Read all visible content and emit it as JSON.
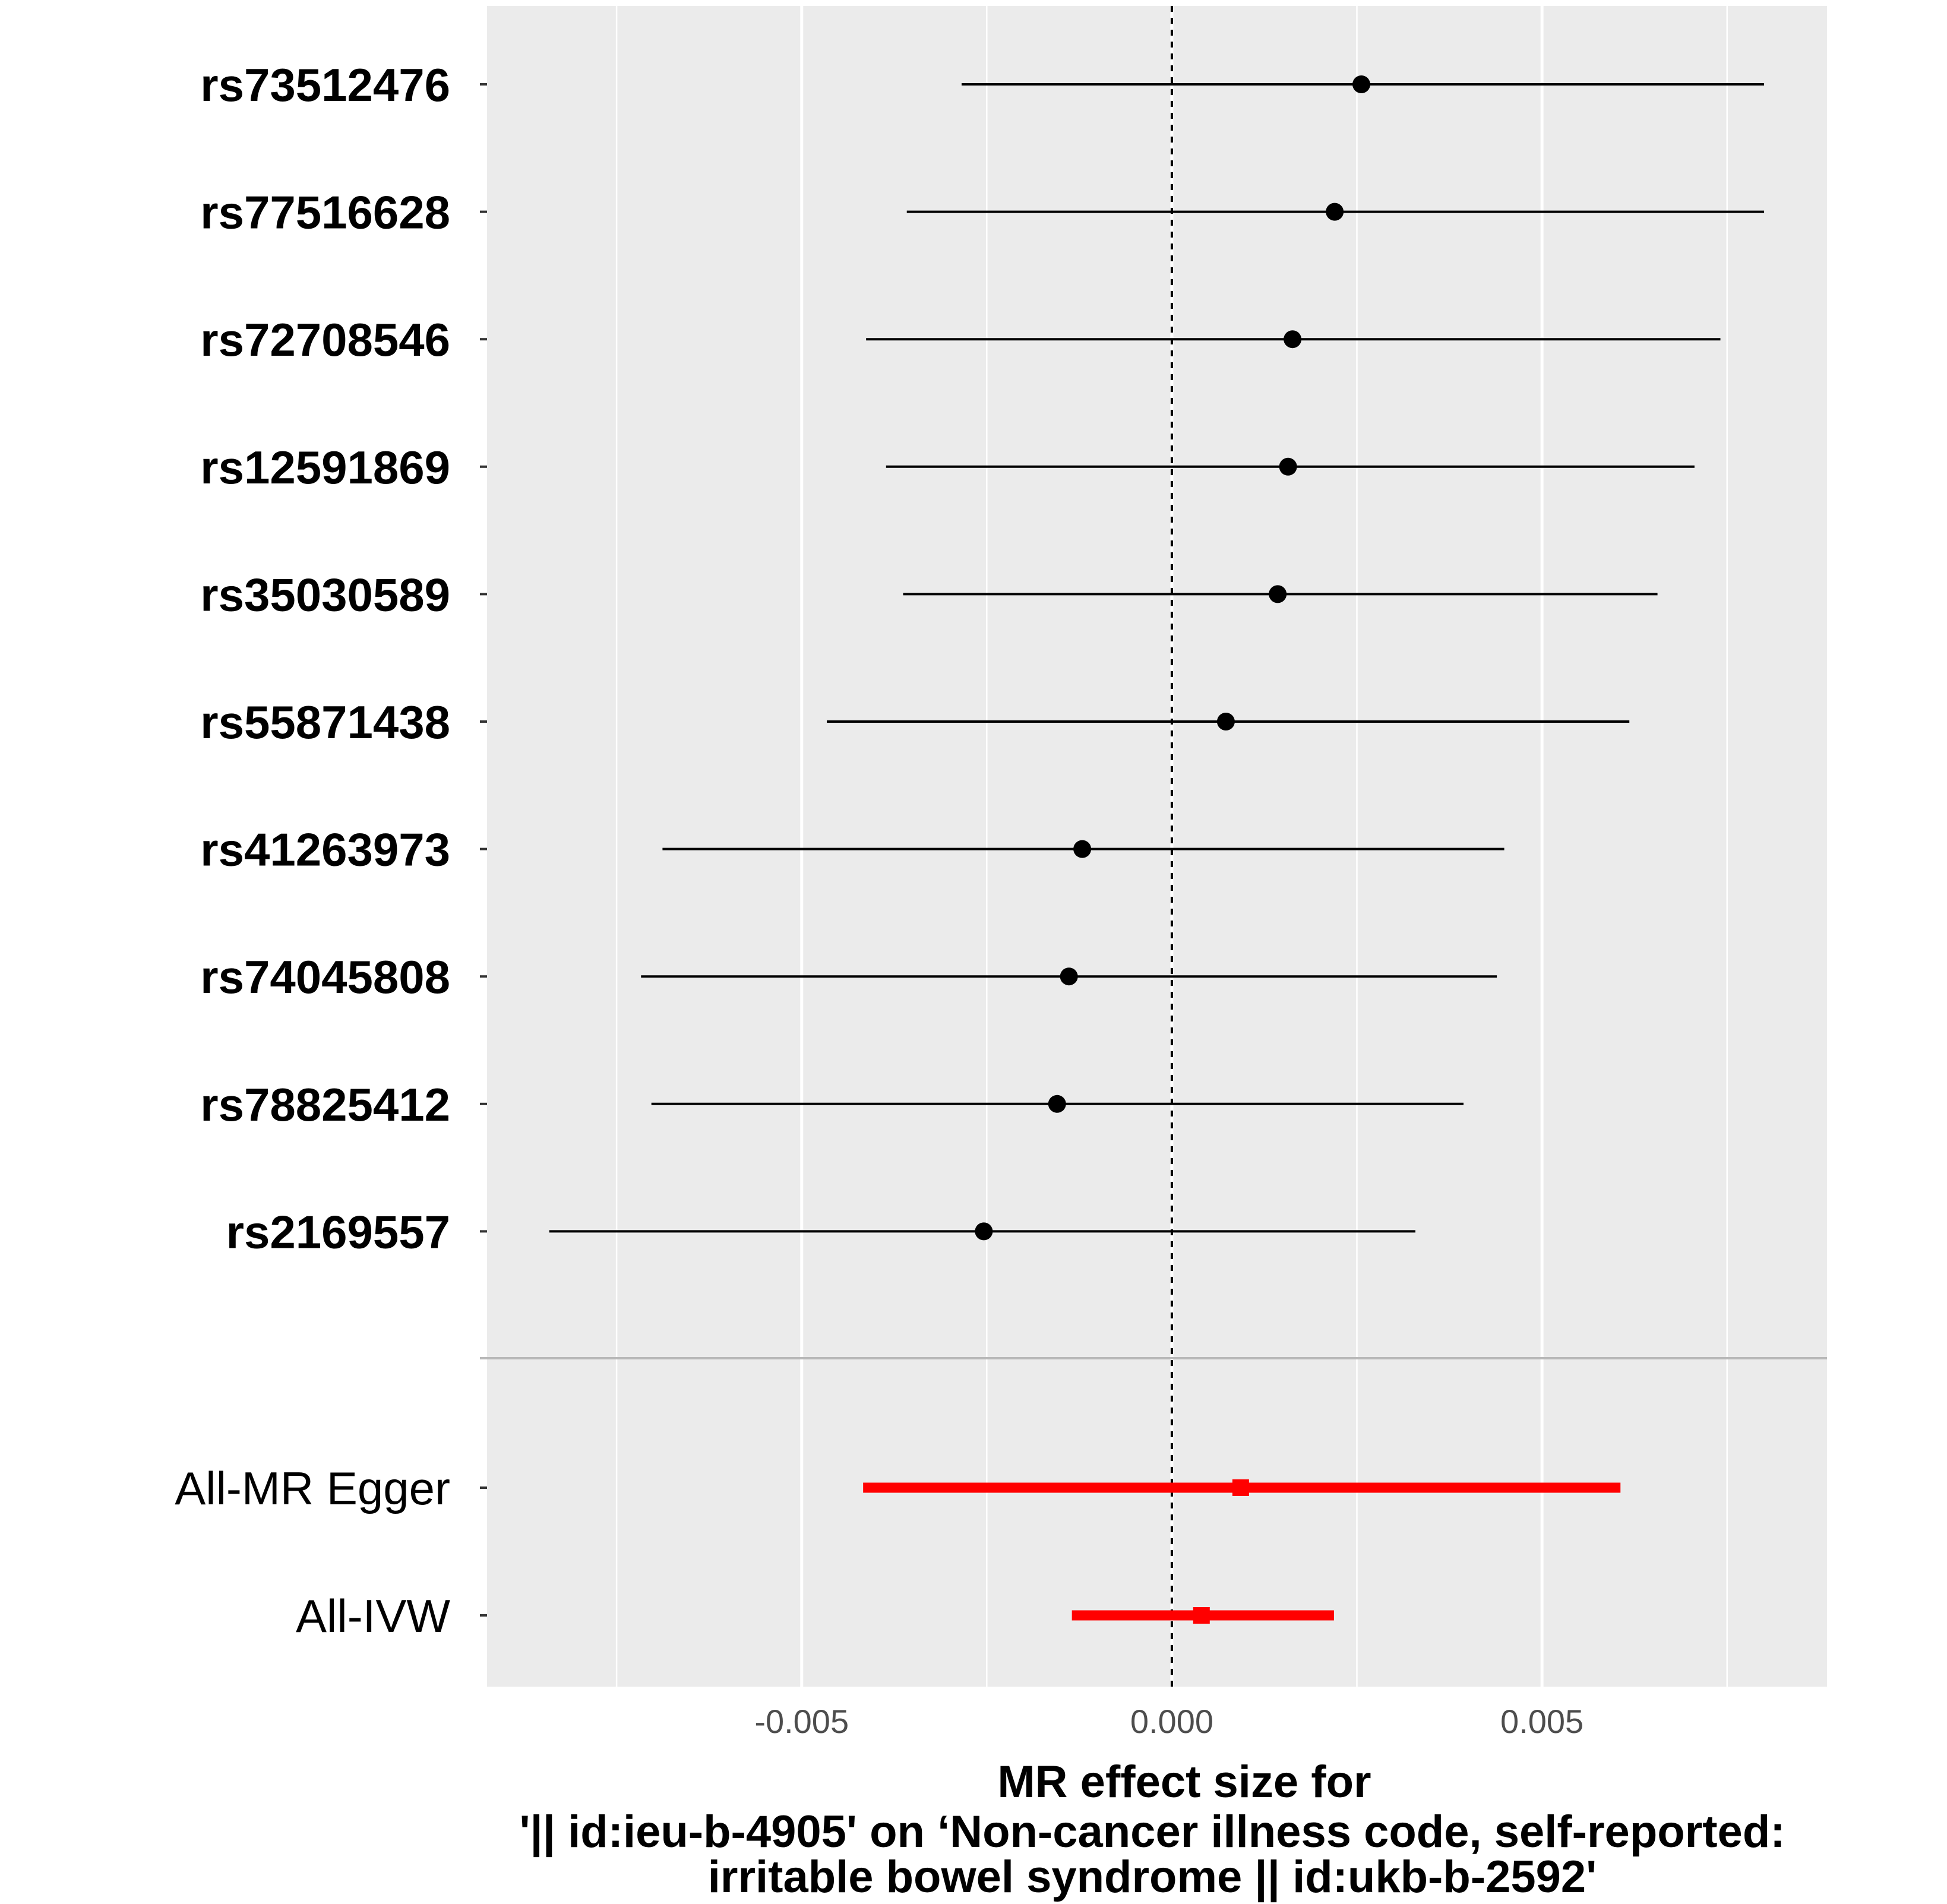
{
  "chart_data": {
    "type": "forest",
    "xlabel_lines": [
      "MR effect size for",
      "'|| id:ieu-b-4905' on ‘Non-cancer illness code, self-reported:",
      "irritable bowel syndrome || id:ukb-b-2592'"
    ],
    "x_ticks": [
      {
        "value": -0.005,
        "label": "-0.005"
      },
      {
        "value": 0.0,
        "label": "0.000"
      },
      {
        "value": 0.005,
        "label": "0.005"
      }
    ],
    "xlim": [
      -0.00925,
      0.00885
    ],
    "reference_line": 0,
    "colors": {
      "snp": "#000000",
      "summary": "#ff0000",
      "panel": "#ebebeb",
      "grid": "#ffffff"
    },
    "snps": [
      {
        "label": "rs73512476",
        "estimate": 0.00256,
        "lower": -0.00284,
        "upper": 0.008
      },
      {
        "label": "rs77516628",
        "estimate": 0.0022,
        "lower": -0.00358,
        "upper": 0.008
      },
      {
        "label": "rs72708546",
        "estimate": 0.00163,
        "lower": -0.00413,
        "upper": 0.00741
      },
      {
        "label": "rs12591869",
        "estimate": 0.00157,
        "lower": -0.00386,
        "upper": 0.00706
      },
      {
        "label": "rs35030589",
        "estimate": 0.00143,
        "lower": -0.00363,
        "upper": 0.00656
      },
      {
        "label": "rs55871438",
        "estimate": 0.00073,
        "lower": -0.00466,
        "upper": 0.00618
      },
      {
        "label": "rs41263973",
        "estimate": -0.00121,
        "lower": -0.00688,
        "upper": 0.00449
      },
      {
        "label": "rs74045808",
        "estimate": -0.00139,
        "lower": -0.00717,
        "upper": 0.00439
      },
      {
        "label": "rs78825412",
        "estimate": -0.00155,
        "lower": -0.00703,
        "upper": 0.00394
      },
      {
        "label": "rs2169557",
        "estimate": -0.00254,
        "lower": -0.00841,
        "upper": 0.00329
      }
    ],
    "summary": [
      {
        "label": "All-MR Egger",
        "estimate": 0.00093,
        "lower": -0.00417,
        "upper": 0.00606
      },
      {
        "label": "All-IVW",
        "estimate": 0.0004,
        "lower": -0.00135,
        "upper": 0.00219
      }
    ]
  }
}
